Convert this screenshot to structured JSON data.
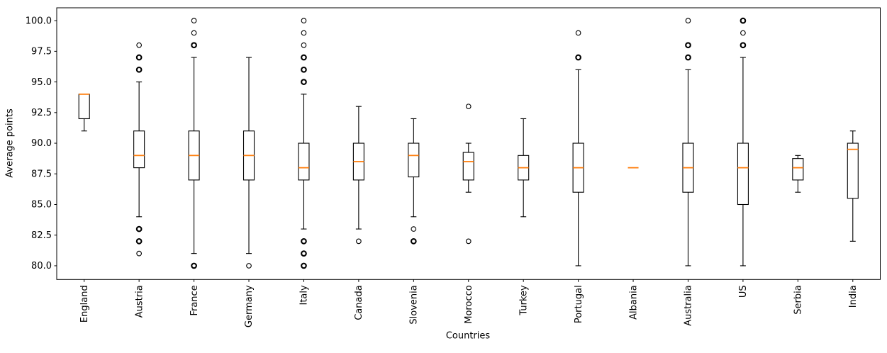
{
  "chart_data": {
    "type": "boxplot",
    "title": "",
    "xlabel": "Countries",
    "ylabel": "Average points",
    "ylim": [
      78.88,
      101.05
    ],
    "yticks": [
      80.0,
      82.5,
      85.0,
      87.5,
      90.0,
      92.5,
      95.0,
      97.5,
      100.0
    ],
    "ytick_labels": [
      "80.0",
      "82.5",
      "85.0",
      "87.5",
      "90.0",
      "92.5",
      "95.0",
      "97.5",
      "100.0"
    ],
    "grid": false,
    "legend": null,
    "colors": {
      "box_edge": "#000000",
      "whisker": "#000000",
      "median": "#ff7f0e",
      "flier_edge": "#000000",
      "background": "#ffffff"
    },
    "categories": [
      "England",
      "Austria",
      "France",
      "Germany",
      "Italy",
      "Canada",
      "Slovenia",
      "Morocco",
      "Turkey",
      "Portugal",
      "Albania",
      "Australia",
      "US",
      "Serbia",
      "India"
    ],
    "series": [
      {
        "label": "England",
        "whislo": 91,
        "q1": 92,
        "med": 94,
        "q3": 94,
        "whishi": 94,
        "fliers": []
      },
      {
        "label": "Austria",
        "whislo": 84,
        "q1": 88,
        "med": 89,
        "q3": 91,
        "whishi": 95,
        "fliers": [
          {
            "value": 98,
            "bold": false
          },
          {
            "value": 97,
            "bold": true
          },
          {
            "value": 96,
            "bold": true
          },
          {
            "value": 83,
            "bold": true
          },
          {
            "value": 82,
            "bold": true
          },
          {
            "value": 81,
            "bold": false
          }
        ]
      },
      {
        "label": "France",
        "whislo": 81,
        "q1": 87,
        "med": 89,
        "q3": 91,
        "whishi": 97,
        "fliers": [
          {
            "value": 100,
            "bold": false
          },
          {
            "value": 99,
            "bold": false
          },
          {
            "value": 98,
            "bold": true
          },
          {
            "value": 80,
            "bold": true
          }
        ]
      },
      {
        "label": "Germany",
        "whislo": 81,
        "q1": 87,
        "med": 89,
        "q3": 91,
        "whishi": 97,
        "fliers": [
          {
            "value": 80,
            "bold": false
          }
        ]
      },
      {
        "label": "Italy",
        "whislo": 83,
        "q1": 87,
        "med": 88,
        "q3": 90,
        "whishi": 94,
        "fliers": [
          {
            "value": 100,
            "bold": false
          },
          {
            "value": 99,
            "bold": false
          },
          {
            "value": 98,
            "bold": false
          },
          {
            "value": 97,
            "bold": true
          },
          {
            "value": 96,
            "bold": true
          },
          {
            "value": 95,
            "bold": true
          },
          {
            "value": 82,
            "bold": true
          },
          {
            "value": 81,
            "bold": true
          },
          {
            "value": 80,
            "bold": true
          }
        ]
      },
      {
        "label": "Canada",
        "whislo": 83,
        "q1": 87,
        "med": 88.5,
        "q3": 90,
        "whishi": 93,
        "fliers": [
          {
            "value": 82,
            "bold": false
          }
        ]
      },
      {
        "label": "Slovenia",
        "whislo": 84,
        "q1": 87.25,
        "med": 89,
        "q3": 90,
        "whishi": 92,
        "fliers": [
          {
            "value": 83,
            "bold": false
          },
          {
            "value": 82,
            "bold": true
          }
        ]
      },
      {
        "label": "Morocco",
        "whislo": 86,
        "q1": 87,
        "med": 88.5,
        "q3": 89.25,
        "whishi": 90,
        "fliers": [
          {
            "value": 93,
            "bold": false
          },
          {
            "value": 82,
            "bold": false
          }
        ]
      },
      {
        "label": "Turkey",
        "whislo": 84,
        "q1": 87,
        "med": 88,
        "q3": 89,
        "whishi": 92,
        "fliers": []
      },
      {
        "label": "Portugal",
        "whislo": 80,
        "q1": 86,
        "med": 88,
        "q3": 90,
        "whishi": 96,
        "fliers": [
          {
            "value": 99,
            "bold": false
          },
          {
            "value": 97,
            "bold": true
          }
        ]
      },
      {
        "label": "Albania",
        "whislo": 88,
        "q1": 88,
        "med": 88,
        "q3": 88,
        "whishi": 88,
        "fliers": []
      },
      {
        "label": "Australia",
        "whislo": 80,
        "q1": 86,
        "med": 88,
        "q3": 90,
        "whishi": 96,
        "fliers": [
          {
            "value": 100,
            "bold": false
          },
          {
            "value": 98,
            "bold": true
          },
          {
            "value": 97,
            "bold": true
          }
        ]
      },
      {
        "label": "US",
        "whislo": 80,
        "q1": 85,
        "med": 88,
        "q3": 90,
        "whishi": 97,
        "fliers": [
          {
            "value": 100,
            "bold": true
          },
          {
            "value": 99,
            "bold": false
          },
          {
            "value": 98,
            "bold": true
          }
        ]
      },
      {
        "label": "Serbia",
        "whislo": 86,
        "q1": 87,
        "med": 88,
        "q3": 88.75,
        "whishi": 89,
        "fliers": []
      },
      {
        "label": "India",
        "whislo": 82,
        "q1": 85.5,
        "med": 89.5,
        "q3": 90,
        "whishi": 91,
        "fliers": []
      }
    ]
  }
}
